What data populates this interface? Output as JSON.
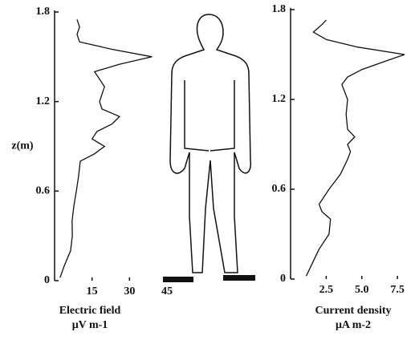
{
  "chart_data": [
    {
      "type": "line",
      "ylabel": "z(m)",
      "xlabel": [
        "Electric field",
        "μV m-1"
      ],
      "x": [
        2.2,
        3.9,
        6.4,
        7.1,
        7,
        7.7,
        8.7,
        9.6,
        10.3,
        16,
        20,
        15,
        17,
        23,
        26,
        19,
        18,
        20,
        16,
        26,
        39,
        23,
        10,
        9,
        10,
        9
      ],
      "values": [
        0.02,
        0.1,
        0.2,
        0.3,
        0.4,
        0.5,
        0.6,
        0.7,
        0.8,
        0.85,
        0.9,
        0.95,
        1.0,
        1.05,
        1.1,
        1.15,
        1.2,
        1.3,
        1.4,
        1.45,
        1.5,
        1.55,
        1.6,
        1.65,
        1.7,
        1.75
      ],
      "color": "#111",
      "xlim": [
        0,
        45
      ],
      "ylim": [
        0,
        1.8
      ],
      "xticks": [
        15,
        30,
        45
      ],
      "yticks": [
        0,
        0.6,
        1.2,
        1.8
      ]
    },
    {
      "type": "line",
      "xlabel": [
        "Current density",
        "μA m-2"
      ],
      "x": [
        1.1,
        1.5,
        2,
        2.7,
        2.8,
        2.2,
        2,
        2.7,
        3.5,
        4,
        4.2,
        4,
        4.5,
        4,
        3.9,
        4,
        3.6,
        4,
        5,
        6.5,
        8,
        4.7,
        2.5,
        1.6,
        2.2,
        2.5
      ],
      "values": [
        0.02,
        0.1,
        0.2,
        0.3,
        0.4,
        0.45,
        0.5,
        0.6,
        0.7,
        0.8,
        0.85,
        0.9,
        0.95,
        1.0,
        1.1,
        1.2,
        1.3,
        1.35,
        1.4,
        1.45,
        1.5,
        1.55,
        1.6,
        1.65,
        1.7,
        1.73
      ],
      "color": "#111",
      "xlim": [
        0,
        8
      ],
      "ylim": [
        0,
        1.8
      ],
      "xticks": [
        2.5,
        {
          "value": 5,
          "label": "5.0"
        },
        7.5
      ],
      "yticks": [
        0,
        0.6,
        1.2,
        1.8
      ]
    }
  ]
}
